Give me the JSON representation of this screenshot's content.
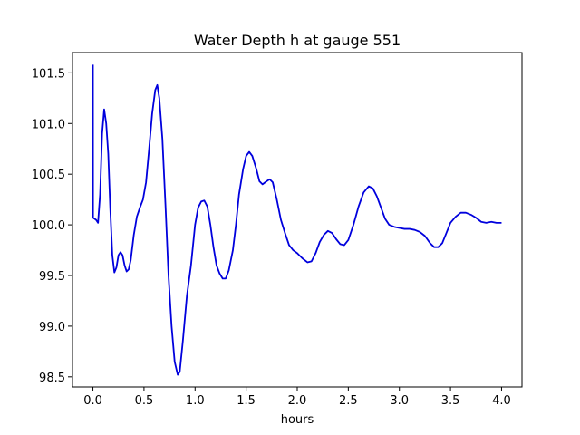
{
  "chart_data": {
    "type": "line",
    "title": "Water Depth h at gauge 551",
    "xlabel": "hours",
    "ylabel": "",
    "xlim": [
      -0.2,
      4.2
    ],
    "ylim": [
      98.4,
      101.7
    ],
    "xticks": [
      0.0,
      0.5,
      1.0,
      1.5,
      2.0,
      2.5,
      3.0,
      3.5,
      4.0
    ],
    "xtick_labels": [
      "0.0",
      "0.5",
      "1.0",
      "1.5",
      "2.0",
      "2.5",
      "3.0",
      "3.5",
      "4.0"
    ],
    "yticks": [
      98.5,
      99.0,
      99.5,
      100.0,
      100.5,
      101.0,
      101.5
    ],
    "ytick_labels": [
      "98.5",
      "99.0",
      "99.5",
      "100.0",
      "100.5",
      "101.0",
      "101.5"
    ],
    "grid": false,
    "series": [
      {
        "color": "#0000dd",
        "points": [
          [
            0.0,
            101.58
          ],
          [
            0.001,
            100.07
          ],
          [
            0.03,
            100.05
          ],
          [
            0.05,
            100.02
          ],
          [
            0.07,
            100.3
          ],
          [
            0.09,
            100.9
          ],
          [
            0.11,
            101.14
          ],
          [
            0.13,
            101.0
          ],
          [
            0.15,
            100.7
          ],
          [
            0.17,
            100.15
          ],
          [
            0.19,
            99.7
          ],
          [
            0.21,
            99.53
          ],
          [
            0.23,
            99.58
          ],
          [
            0.25,
            99.7
          ],
          [
            0.27,
            99.73
          ],
          [
            0.29,
            99.7
          ],
          [
            0.31,
            99.6
          ],
          [
            0.33,
            99.54
          ],
          [
            0.35,
            99.56
          ],
          [
            0.37,
            99.65
          ],
          [
            0.4,
            99.9
          ],
          [
            0.43,
            100.08
          ],
          [
            0.46,
            100.17
          ],
          [
            0.49,
            100.25
          ],
          [
            0.52,
            100.42
          ],
          [
            0.55,
            100.75
          ],
          [
            0.58,
            101.1
          ],
          [
            0.61,
            101.33
          ],
          [
            0.63,
            101.38
          ],
          [
            0.65,
            101.25
          ],
          [
            0.68,
            100.85
          ],
          [
            0.71,
            100.2
          ],
          [
            0.74,
            99.5
          ],
          [
            0.77,
            99.0
          ],
          [
            0.8,
            98.65
          ],
          [
            0.83,
            98.52
          ],
          [
            0.85,
            98.55
          ],
          [
            0.88,
            98.85
          ],
          [
            0.92,
            99.3
          ],
          [
            0.96,
            99.6
          ],
          [
            1.0,
            100.0
          ],
          [
            1.03,
            100.17
          ],
          [
            1.06,
            100.23
          ],
          [
            1.09,
            100.24
          ],
          [
            1.12,
            100.18
          ],
          [
            1.15,
            100.0
          ],
          [
            1.18,
            99.78
          ],
          [
            1.21,
            99.6
          ],
          [
            1.24,
            99.52
          ],
          [
            1.27,
            99.47
          ],
          [
            1.3,
            99.47
          ],
          [
            1.33,
            99.55
          ],
          [
            1.37,
            99.75
          ],
          [
            1.4,
            100.0
          ],
          [
            1.43,
            100.3
          ],
          [
            1.47,
            100.55
          ],
          [
            1.5,
            100.68
          ],
          [
            1.53,
            100.72
          ],
          [
            1.56,
            100.68
          ],
          [
            1.6,
            100.55
          ],
          [
            1.63,
            100.43
          ],
          [
            1.66,
            100.4
          ],
          [
            1.7,
            100.43
          ],
          [
            1.73,
            100.45
          ],
          [
            1.76,
            100.42
          ],
          [
            1.8,
            100.25
          ],
          [
            1.84,
            100.05
          ],
          [
            1.88,
            99.92
          ],
          [
            1.92,
            99.8
          ],
          [
            1.96,
            99.75
          ],
          [
            2.0,
            99.72
          ],
          [
            2.05,
            99.67
          ],
          [
            2.1,
            99.63
          ],
          [
            2.14,
            99.64
          ],
          [
            2.18,
            99.72
          ],
          [
            2.22,
            99.83
          ],
          [
            2.26,
            99.9
          ],
          [
            2.3,
            99.94
          ],
          [
            2.34,
            99.92
          ],
          [
            2.38,
            99.86
          ],
          [
            2.42,
            99.81
          ],
          [
            2.46,
            99.8
          ],
          [
            2.5,
            99.85
          ],
          [
            2.55,
            100.0
          ],
          [
            2.6,
            100.18
          ],
          [
            2.65,
            100.32
          ],
          [
            2.7,
            100.38
          ],
          [
            2.74,
            100.36
          ],
          [
            2.78,
            100.28
          ],
          [
            2.82,
            100.17
          ],
          [
            2.86,
            100.06
          ],
          [
            2.9,
            100.0
          ],
          [
            2.95,
            99.98
          ],
          [
            3.0,
            99.97
          ],
          [
            3.05,
            99.96
          ],
          [
            3.1,
            99.96
          ],
          [
            3.15,
            99.95
          ],
          [
            3.2,
            99.93
          ],
          [
            3.25,
            99.89
          ],
          [
            3.3,
            99.82
          ],
          [
            3.34,
            99.78
          ],
          [
            3.38,
            99.78
          ],
          [
            3.42,
            99.82
          ],
          [
            3.46,
            99.92
          ],
          [
            3.5,
            100.02
          ],
          [
            3.55,
            100.08
          ],
          [
            3.6,
            100.12
          ],
          [
            3.65,
            100.12
          ],
          [
            3.7,
            100.1
          ],
          [
            3.75,
            100.07
          ],
          [
            3.8,
            100.03
          ],
          [
            3.85,
            100.02
          ],
          [
            3.9,
            100.03
          ],
          [
            3.95,
            100.02
          ],
          [
            4.0,
            100.02
          ]
        ]
      }
    ]
  }
}
